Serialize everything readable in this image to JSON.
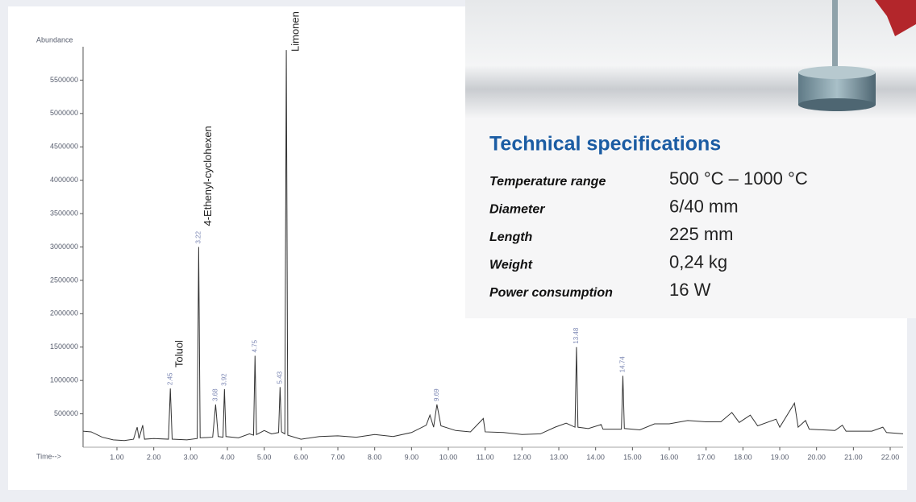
{
  "chart_data": {
    "type": "line",
    "ylabel": "Abundance",
    "xlabel": "Time-->",
    "xlim": [
      0.08,
      22.35
    ],
    "ylim": [
      0,
      6000000
    ],
    "xticks": [
      {
        "value": 1,
        "label": "1.00"
      },
      {
        "value": 2,
        "label": "2.00"
      },
      {
        "value": 3,
        "label": "3.00"
      },
      {
        "value": 4,
        "label": "4.00"
      },
      {
        "value": 5,
        "label": "5.00"
      },
      {
        "value": 6,
        "label": "6.00"
      },
      {
        "value": 7,
        "label": "7.00"
      },
      {
        "value": 8,
        "label": "8.00"
      },
      {
        "value": 9,
        "label": "9.00"
      },
      {
        "value": 10,
        "label": "10.00"
      },
      {
        "value": 11,
        "label": "11.00"
      },
      {
        "value": 12,
        "label": "12.00"
      },
      {
        "value": 13,
        "label": "13.00"
      },
      {
        "value": 14,
        "label": "14.00"
      },
      {
        "value": 15,
        "label": "15.00"
      },
      {
        "value": 16,
        "label": "16.00"
      },
      {
        "value": 17,
        "label": "17.00"
      },
      {
        "value": 18,
        "label": "18.00"
      },
      {
        "value": 19,
        "label": "19.00"
      },
      {
        "value": 20,
        "label": "20.00"
      },
      {
        "value": 21,
        "label": "21.00"
      },
      {
        "value": 22,
        "label": "22.00"
      }
    ],
    "yticks": [
      500000,
      1000000,
      1500000,
      2000000,
      2500000,
      3000000,
      3500000,
      4000000,
      4500000,
      5000000,
      5500000
    ],
    "color": "#333333",
    "x": [
      0.08,
      0.3,
      0.6,
      0.9,
      1.2,
      1.45,
      1.55,
      1.6,
      1.7,
      1.75,
      2.0,
      2.4,
      2.45,
      2.5,
      2.9,
      3.18,
      3.22,
      3.26,
      3.6,
      3.68,
      3.75,
      3.88,
      3.92,
      3.96,
      4.3,
      4.6,
      4.71,
      4.75,
      4.79,
      5.0,
      5.2,
      5.39,
      5.43,
      5.47,
      5.56,
      5.6,
      5.64,
      6.0,
      6.5,
      7.0,
      7.5,
      8.0,
      8.5,
      9.0,
      9.4,
      9.5,
      9.6,
      9.69,
      9.8,
      10.2,
      10.6,
      10.95,
      11.0,
      11.5,
      12.0,
      12.5,
      12.9,
      13.2,
      13.44,
      13.48,
      13.52,
      13.8,
      14.15,
      14.2,
      14.7,
      14.74,
      14.78,
      15.2,
      15.6,
      16.0,
      16.5,
      17.0,
      17.4,
      17.7,
      17.9,
      18.2,
      18.4,
      18.9,
      19.0,
      19.4,
      19.5,
      19.7,
      19.8,
      20.5,
      20.7,
      20.8,
      21.5,
      21.8,
      21.9,
      22.35
    ],
    "values": [
      240000,
      230000,
      150000,
      110000,
      100000,
      120000,
      300000,
      130000,
      330000,
      120000,
      130000,
      120000,
      880000,
      120000,
      110000,
      130000,
      3000000,
      140000,
      150000,
      640000,
      160000,
      150000,
      870000,
      160000,
      140000,
      200000,
      180000,
      1370000,
      190000,
      250000,
      200000,
      220000,
      900000,
      230000,
      200000,
      5950000,
      180000,
      120000,
      160000,
      170000,
      150000,
      190000,
      160000,
      220000,
      330000,
      480000,
      300000,
      640000,
      320000,
      250000,
      230000,
      430000,
      230000,
      220000,
      190000,
      200000,
      300000,
      360000,
      300000,
      1500000,
      300000,
      280000,
      340000,
      270000,
      270000,
      1070000,
      280000,
      260000,
      350000,
      350000,
      400000,
      380000,
      380000,
      520000,
      370000,
      480000,
      320000,
      420000,
      300000,
      660000,
      300000,
      400000,
      270000,
      250000,
      330000,
      240000,
      240000,
      300000,
      220000,
      200000
    ],
    "peak_labels": [
      2.45,
      3.22,
      3.68,
      3.92,
      4.75,
      5.43,
      9.69,
      13.48,
      14.74
    ],
    "compounds": [
      "Toluol",
      "4-Ethenyl-cyclohexen",
      "Limonen"
    ]
  },
  "specs": {
    "title": "Technical specifications",
    "rows": [
      [
        "Temperature range",
        "500 °C – 1000 °C"
      ],
      [
        "Diameter",
        "6/40 mm"
      ],
      [
        "Length",
        "225 mm"
      ],
      [
        "Weight",
        "0,24 kg"
      ],
      [
        "Power consumption",
        "16 W"
      ]
    ]
  }
}
